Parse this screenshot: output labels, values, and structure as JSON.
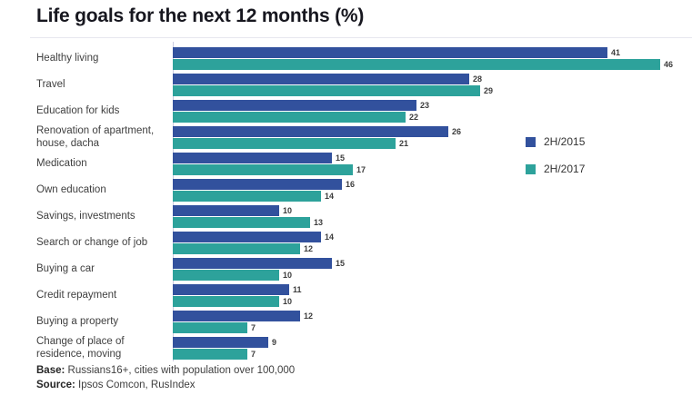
{
  "title": "Life goals for the next 12 months (%)",
  "colors": {
    "series1": "#32519d",
    "series2": "#2da29b",
    "title_text": "#17171f",
    "label_text": "#3f3f3f",
    "axis_line": "#c9cce0"
  },
  "legend": [
    {
      "name": "2H/2015",
      "color": "#32519d"
    },
    {
      "name": "2H/2017",
      "color": "#2da29b"
    }
  ],
  "footer": {
    "base_label": "Base:",
    "base_text": " Russians16+, cities with population over 100,000",
    "source_label": "Source:",
    "source_text": " Ipsos Comcon, RusIndex"
  },
  "chart_data": {
    "type": "bar",
    "orientation": "horizontal",
    "title": "Life goals for the next 12 months (%)",
    "xlabel": "",
    "ylabel": "",
    "xlim": [
      0,
      49
    ],
    "grid": false,
    "legend_position": "right-middle",
    "categories": [
      "Healthy living",
      "Travel",
      "Education for kids",
      "Renovation of apartment,\nhouse, dacha",
      "Medication",
      "Own education",
      "Savings, investments",
      "Search or change of job",
      "Buying a car",
      "Credit repayment",
      "Buying a property",
      "Change of place of\nresidence, moving"
    ],
    "series": [
      {
        "name": "2H/2015",
        "color": "#32519d",
        "values": [
          41,
          28,
          23,
          26,
          15,
          16,
          10,
          14,
          15,
          11,
          12,
          9
        ]
      },
      {
        "name": "2H/2017",
        "color": "#2da29b",
        "values": [
          46,
          29,
          22,
          21,
          17,
          14,
          13,
          12,
          10,
          10,
          7,
          7
        ]
      }
    ]
  }
}
